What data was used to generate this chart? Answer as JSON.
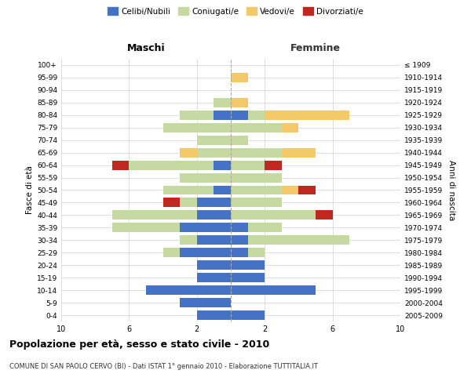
{
  "age_groups": [
    "0-4",
    "5-9",
    "10-14",
    "15-19",
    "20-24",
    "25-29",
    "30-34",
    "35-39",
    "40-44",
    "45-49",
    "50-54",
    "55-59",
    "60-64",
    "65-69",
    "70-74",
    "75-79",
    "80-84",
    "85-89",
    "90-94",
    "95-99",
    "100+"
  ],
  "birth_years": [
    "2005-2009",
    "2000-2004",
    "1995-1999",
    "1990-1994",
    "1985-1989",
    "1980-1984",
    "1975-1979",
    "1970-1974",
    "1965-1969",
    "1960-1964",
    "1955-1959",
    "1950-1954",
    "1945-1949",
    "1940-1944",
    "1935-1939",
    "1930-1934",
    "1925-1929",
    "1920-1924",
    "1915-1919",
    "1910-1914",
    "≤ 1909"
  ],
  "males": {
    "celibi": [
      2,
      3,
      5,
      2,
      2,
      3,
      2,
      3,
      2,
      2,
      1,
      0,
      1,
      0,
      0,
      0,
      1,
      0,
      0,
      0,
      0
    ],
    "coniugati": [
      0,
      0,
      0,
      0,
      0,
      1,
      1,
      4,
      5,
      1,
      3,
      3,
      5,
      2,
      2,
      4,
      2,
      1,
      0,
      0,
      0
    ],
    "vedovi": [
      0,
      0,
      0,
      0,
      0,
      0,
      0,
      0,
      0,
      0,
      0,
      0,
      0,
      1,
      0,
      0,
      0,
      0,
      0,
      0,
      0
    ],
    "divorziati": [
      0,
      0,
      0,
      0,
      0,
      0,
      0,
      0,
      0,
      1,
      0,
      0,
      1,
      0,
      0,
      0,
      0,
      0,
      0,
      0,
      0
    ]
  },
  "females": {
    "nubili": [
      2,
      0,
      5,
      2,
      2,
      1,
      1,
      1,
      0,
      0,
      0,
      0,
      0,
      0,
      0,
      0,
      1,
      0,
      0,
      0,
      0
    ],
    "coniugate": [
      0,
      0,
      0,
      0,
      0,
      1,
      6,
      2,
      5,
      3,
      3,
      3,
      2,
      3,
      1,
      3,
      1,
      0,
      0,
      0,
      0
    ],
    "vedove": [
      0,
      0,
      0,
      0,
      0,
      0,
      0,
      0,
      0,
      0,
      1,
      0,
      0,
      2,
      0,
      1,
      5,
      1,
      0,
      1,
      0
    ],
    "divorziate": [
      0,
      0,
      0,
      0,
      0,
      0,
      0,
      0,
      1,
      0,
      1,
      0,
      1,
      0,
      0,
      0,
      0,
      0,
      0,
      0,
      0
    ]
  },
  "color_celibi": "#4472c4",
  "color_coniugati": "#c5d9a0",
  "color_vedovi": "#f5c96a",
  "color_divorziati": "#c0271e",
  "title": "Popolazione per età, sesso e stato civile - 2010",
  "subtitle": "COMUNE DI SAN PAOLO CERVO (BI) - Dati ISTAT 1° gennaio 2010 - Elaborazione TUTTITALIA.IT",
  "xlabel_left": "Maschi",
  "xlabel_right": "Femmine",
  "ylabel_left": "Fasce di età",
  "ylabel_right": "Anni di nascita",
  "xlim": 10,
  "bg_color": "#ffffff",
  "grid_color": "#d0d0d0"
}
